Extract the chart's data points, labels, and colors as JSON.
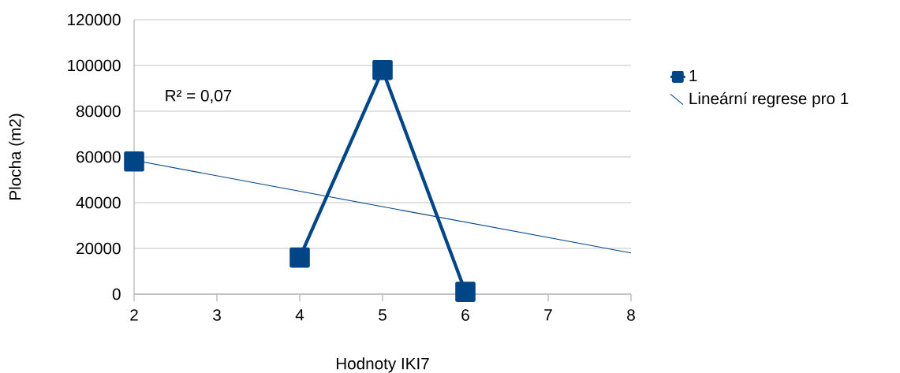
{
  "chart_data": {
    "type": "line",
    "xlabel": "Hodnoty IKI7",
    "ylabel": "Plocha (m2)",
    "x": [
      2,
      3,
      4,
      5,
      6
    ],
    "series": [
      {
        "name": "1",
        "color": "#004586",
        "values": [
          58000,
          null,
          16000,
          98000,
          1000
        ],
        "marker": "square"
      },
      {
        "name": "Lineární regrese pro 1",
        "color": "#004586",
        "x": [
          2,
          8
        ],
        "values": [
          58500,
          18000
        ],
        "marker": "none"
      }
    ],
    "xlim": [
      2,
      8
    ],
    "xticks": [
      2,
      3,
      4,
      5,
      6,
      7,
      8
    ],
    "ylim": [
      0,
      120000
    ],
    "yticks": [
      0,
      20000,
      40000,
      60000,
      80000,
      100000,
      120000
    ],
    "grid": "y",
    "legend": "right",
    "annotations": [
      "R² = 0,07"
    ]
  }
}
